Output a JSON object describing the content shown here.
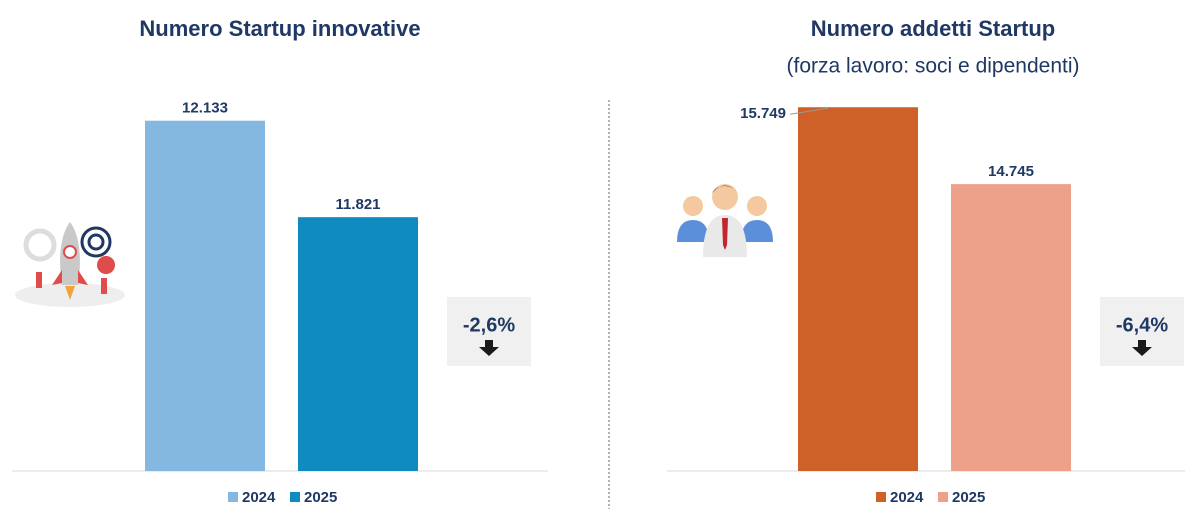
{
  "chart_data": [
    {
      "type": "bar",
      "title": "Numero Startup innovative",
      "categories": [
        null
      ],
      "series": [
        {
          "name": "2024",
          "color": "#85b8e0",
          "values": [
            12133
          ],
          "value_labels": [
            "12.133"
          ]
        },
        {
          "name": "2025",
          "color": "#0f8bbf",
          "values": [
            11821
          ],
          "value_labels": [
            "11.821"
          ]
        }
      ],
      "ylim": [
        11000,
        12200
      ],
      "annotation": "-2,6%"
    },
    {
      "type": "bar",
      "title": "Numero addetti Startup",
      "subtitle": "(forza lavoro: soci e dipendenti)",
      "categories": [
        null
      ],
      "series": [
        {
          "name": "2024",
          "color": "#cd6127",
          "values": [
            15749
          ],
          "value_labels": [
            "15.749"
          ]
        },
        {
          "name": "2025",
          "color": "#eda08a",
          "values": [
            14745
          ],
          "value_labels": [
            "14.745"
          ]
        }
      ],
      "ylim": [
        11000,
        16000
      ],
      "annotation": "-6,4%"
    }
  ]
}
